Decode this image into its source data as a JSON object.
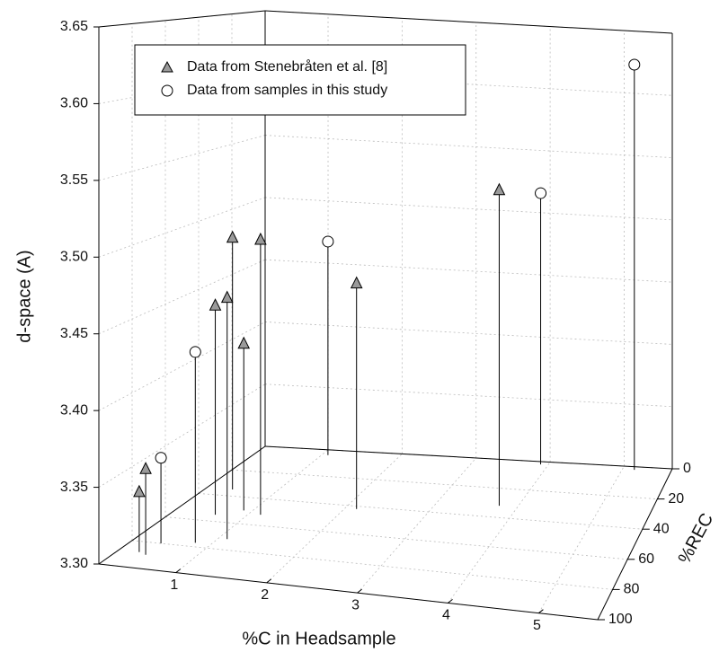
{
  "chart_data": {
    "type": "stem3d",
    "xlabel": "%C in Headsample",
    "ylabel": "%REC",
    "zlabel": "d-space (A)",
    "xlim": [
      0.15,
      5.65
    ],
    "ylim": [
      0,
      100
    ],
    "zlim": [
      3.3,
      3.65
    ],
    "xticks": [
      1,
      2,
      3,
      4,
      5
    ],
    "yticks": [
      0,
      20,
      40,
      60,
      80,
      100
    ],
    "zticks": [
      {
        "value": 3.3,
        "label": "3.30"
      },
      3.35,
      {
        "value": 3.4,
        "label": "3.40"
      },
      3.45,
      {
        "value": 3.5,
        "label": "3.50"
      },
      3.55,
      {
        "value": 3.6,
        "label": "3.60"
      },
      3.65
    ],
    "grid": true,
    "legend": "upper left",
    "series": [
      {
        "name": "Data from Stenebråten et al. [8]",
        "marker": "triangle",
        "color": "#9a9a9a",
        "x": [
          0.38,
          0.48,
          0.65,
          1.1,
          0.47,
          0.9,
          1.14,
          2.14,
          3.77
        ],
        "y": [
          88,
          89.5,
          55,
          72,
          35,
          50,
          52,
          42,
          32
        ],
        "z": [
          3.34,
          3.357,
          3.449,
          3.466,
          3.487,
          3.42,
          3.497,
          3.465,
          3.536
        ]
      },
      {
        "name": "Data from samples in this study",
        "marker": "circle",
        "color": "#ffffff",
        "x": [
          0.48,
          0.82,
          1.08,
          3.9,
          5.16
        ],
        "y": [
          80,
          77,
          4,
          2,
          2
        ],
        "z": [
          3.358,
          3.43,
          3.47,
          3.517,
          3.624
        ]
      }
    ]
  }
}
